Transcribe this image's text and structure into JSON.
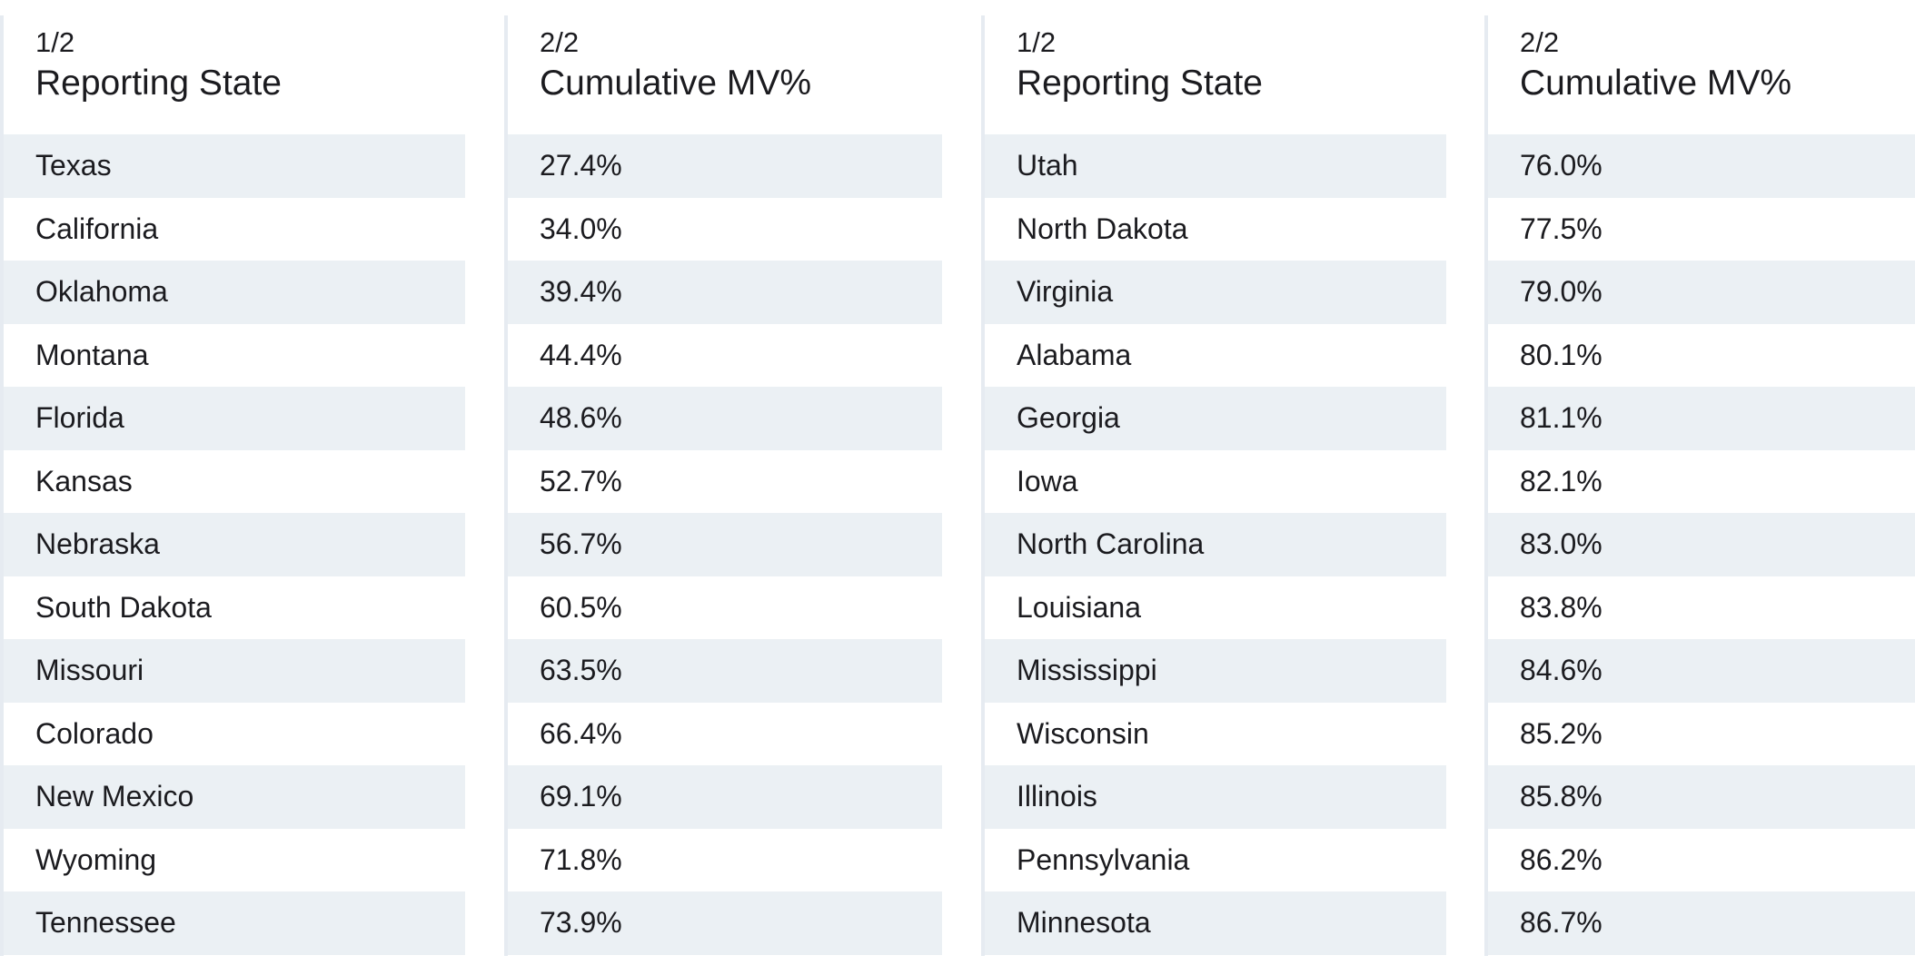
{
  "panels": [
    {
      "part": "1/2",
      "title": "Reporting State",
      "rows": [
        "Texas",
        "California",
        "Oklahoma",
        "Montana",
        "Florida",
        "Kansas",
        "Nebraska",
        "South Dakota",
        "Missouri",
        "Colorado",
        "New Mexico",
        "Wyoming",
        "Tennessee"
      ]
    },
    {
      "part": "2/2",
      "title": "Cumulative MV%",
      "rows": [
        "27.4%",
        "34.0%",
        "39.4%",
        "44.4%",
        "48.6%",
        "52.7%",
        "56.7%",
        "60.5%",
        "63.5%",
        "66.4%",
        "69.1%",
        "71.8%",
        "73.9%"
      ]
    },
    {
      "part": "1/2",
      "title": "Reporting State",
      "rows": [
        "Utah",
        "North Dakota",
        "Virginia",
        "Alabama",
        "Georgia",
        "Iowa",
        "North Carolina",
        "Louisiana",
        "Mississippi",
        "Wisconsin",
        "Illinois",
        "Pennsylvania",
        "Minnesota"
      ]
    },
    {
      "part": "2/2",
      "title": "Cumulative MV%",
      "rows": [
        "76.0%",
        "77.5%",
        "79.0%",
        "80.1%",
        "81.1%",
        "82.1%",
        "83.0%",
        "83.8%",
        "84.6%",
        "85.2%",
        "85.8%",
        "86.2%",
        "86.7%"
      ]
    }
  ]
}
